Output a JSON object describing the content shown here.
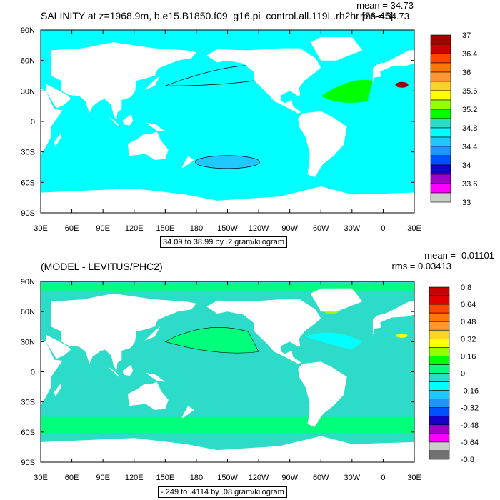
{
  "colors": {
    "palette": [
      "#707070",
      "#cccccc",
      "#ff00ff",
      "#a000c8",
      "#1400c8",
      "#0050ff",
      "#1e96ff",
      "#1ec8ff",
      "#00ffff",
      "#2ddcc8",
      "#00ff00",
      "#96ff00",
      "#ffff00",
      "#ffd228",
      "#ff9632",
      "#ff7800",
      "#ff4600",
      "#c80000",
      "#a00000"
    ],
    "land": "#ffffff",
    "frame": "#000000"
  },
  "chart_data": [
    {
      "type": "heatmap",
      "title": "SALINITY at z=1968.9m, b.e15.B1850.f09_g16.pi_control.all.119L.rh2hr [26-45]",
      "stats": {
        "mean_label": "mean = 34.73",
        "rms_label": "rms = 34.73",
        "mean": 34.73,
        "rms": 34.73
      },
      "caption": "34.09 to 38.99 by .2 gram/kilogram",
      "x_ticks": [
        "30E",
        "60E",
        "90E",
        "120E",
        "150E",
        "180",
        "150W",
        "120W",
        "90W",
        "60W",
        "30W",
        "0",
        "30E"
      ],
      "y_ticks": [
        "90N",
        "60N",
        "30N",
        "0",
        "30S",
        "60S",
        "90S"
      ],
      "xlim": [
        30,
        390
      ],
      "ylim": [
        -90,
        90
      ],
      "colorbar_labels": [
        "37",
        "36.4",
        "36",
        "35.6",
        "35.2",
        "34.8",
        "34.4",
        "34",
        "33.6",
        "33"
      ],
      "colorbar_label_slots": [
        0,
        2,
        4,
        6,
        8,
        10,
        12,
        14,
        16,
        18
      ],
      "dominant_value": 34.8,
      "regions": {
        "north_pacific_value": 34.5,
        "north_atlantic_value": 35.0,
        "mediterranean_outflow_value": 36.8,
        "southern_ocean_value": 34.7
      }
    },
    {
      "type": "heatmap",
      "title": "(MODEL - LEVITUS/PHC2)",
      "stats": {
        "mean_label": "mean = -0.01101",
        "rms_label": "rms = 0.03413",
        "mean": -0.01101,
        "rms": 0.03413
      },
      "caption": "-.249 to .4114 by .08 gram/kilogram",
      "x_ticks": [
        "30E",
        "60E",
        "90E",
        "120E",
        "150E",
        "180",
        "150W",
        "120W",
        "90W",
        "60W",
        "30W",
        "0",
        "30E"
      ],
      "y_ticks": [
        "90N",
        "60N",
        "30N",
        "0",
        "30S",
        "60S",
        "90S"
      ],
      "xlim": [
        30,
        390
      ],
      "ylim": [
        -90,
        90
      ],
      "colorbar_labels": [
        "0.8",
        "0.64",
        "0.48",
        "0.32",
        "0.16",
        "0",
        "-0.16",
        "-0.32",
        "-0.48",
        "-0.64",
        "-0.8"
      ],
      "colorbar_label_slots": [
        0,
        2,
        4,
        6,
        8,
        10,
        12,
        14,
        16,
        18,
        20
      ],
      "dominant_value": 0.0,
      "regions": {
        "southern_ocean_value": 0.05,
        "north_atlantic_value": 0.02,
        "mediterranean_outflow_value": 0.35,
        "gulf_stream_value": -0.08
      }
    }
  ]
}
